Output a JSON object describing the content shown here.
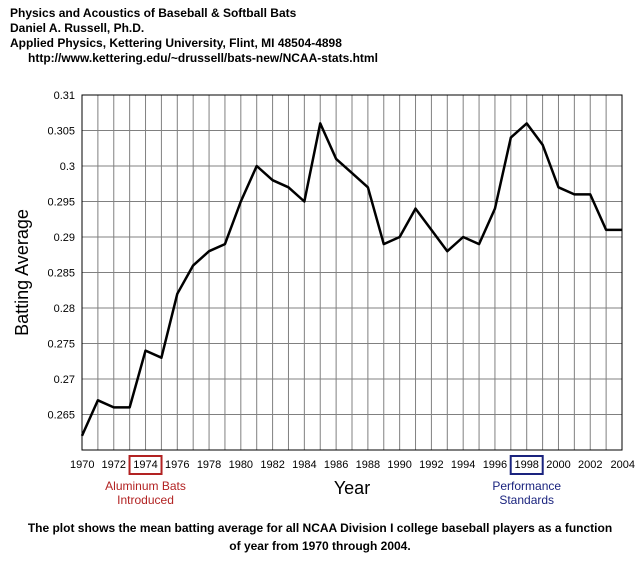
{
  "header": {
    "line1": "Physics and Acoustics of Baseball & Softball Bats",
    "line2": "Daniel A. Russell, Ph.D.",
    "line3": "Applied Physics, Kettering University, Flint, MI 48504-4898",
    "url": "http://www.kettering.edu/~drussell/bats-new/NCAA-stats.html"
  },
  "caption": {
    "line1": "The plot shows the mean batting average for all NCAA Division I college baseball players as a function",
    "line2": "of year from 1970 through 2004."
  },
  "colors": {
    "line": "#000000",
    "grid": "#808080",
    "aluminum": "#b22222",
    "performance": "#1a237e"
  },
  "annotations": [
    {
      "year": 1974,
      "label_line1": "Aluminum Bats",
      "label_line2": "Introduced",
      "color": "#b22222"
    },
    {
      "year": 1998,
      "label_line1": "Performance",
      "label_line2": "Standards",
      "color": "#1a237e"
    }
  ],
  "chart_data": {
    "type": "line",
    "xlabel": "Year",
    "ylabel": "Batting Average",
    "xlim": [
      1970,
      2004
    ],
    "ylim": [
      0.26,
      0.31
    ],
    "grid": true,
    "x_ticks": [
      "1970",
      "1972",
      "1974",
      "1976",
      "1978",
      "1980",
      "1982",
      "1984",
      "1986",
      "1988",
      "1990",
      "1992",
      "1994",
      "1996",
      "1998",
      "2000",
      "2002",
      "2004"
    ],
    "y_ticks": [
      "0.265",
      "0.27",
      "0.275",
      "0.28",
      "0.285",
      "0.29",
      "0.295",
      "0.3",
      "0.305",
      "0.31"
    ],
    "series": [
      {
        "x": [
          1970,
          1971,
          1972,
          1973,
          1974,
          1975,
          1976,
          1977,
          1978,
          1979,
          1980,
          1981,
          1982,
          1983,
          1984,
          1985,
          1986,
          1987,
          1988,
          1989,
          1990,
          1991,
          1992,
          1993,
          1994,
          1995,
          1996,
          1997,
          1998,
          1999,
          2000,
          2001,
          2002,
          2003,
          2004
        ],
        "values": [
          0.262,
          0.267,
          0.266,
          0.266,
          0.274,
          0.273,
          0.282,
          0.286,
          0.288,
          0.289,
          0.295,
          0.3,
          0.298,
          0.297,
          0.295,
          0.306,
          0.301,
          0.299,
          0.297,
          0.289,
          0.29,
          0.294,
          0.291,
          0.288,
          0.29,
          0.289,
          0.294,
          0.304,
          0.306,
          0.303,
          0.297,
          0.296,
          0.296,
          0.291,
          0.291
        ]
      }
    ]
  }
}
